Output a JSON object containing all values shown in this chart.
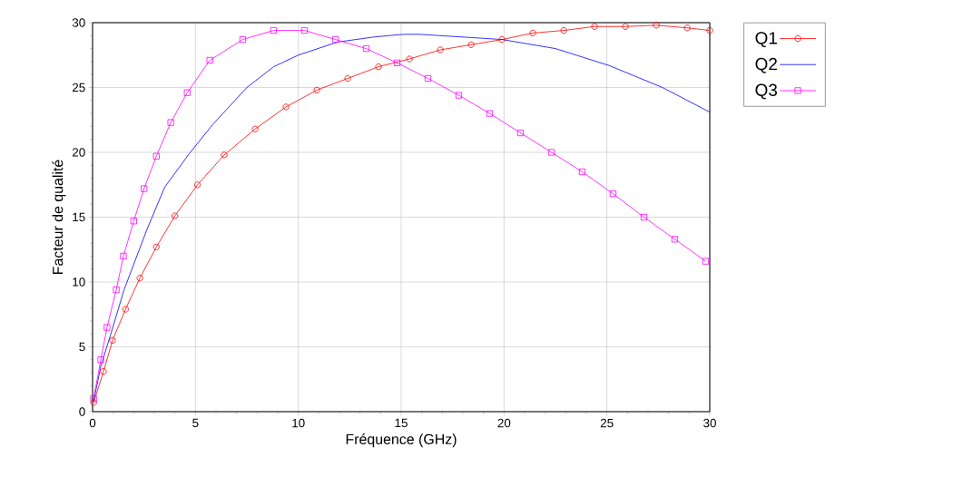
{
  "chart_data": {
    "type": "line",
    "xlabel": "Fréquence (GHz)",
    "ylabel": "Facteur de qualité",
    "xlim": [
      0,
      30
    ],
    "ylim": [
      0,
      30
    ],
    "xticks": [
      0,
      5,
      10,
      15,
      20,
      25,
      30
    ],
    "yticks": [
      0,
      5,
      10,
      15,
      20,
      25,
      30
    ],
    "grid": true,
    "legend": "right",
    "series": [
      {
        "name": "Q1",
        "color": "#ff0000",
        "marker": "circle",
        "x": [
          0.05,
          0.53,
          0.97,
          1.6,
          2.3,
          3.1,
          4.0,
          5.1,
          6.4,
          7.9,
          9.4,
          10.9,
          12.4,
          13.9,
          15.4,
          16.9,
          18.4,
          19.9,
          21.4,
          22.9,
          24.4,
          25.9,
          27.4,
          28.9,
          30
        ],
        "values": [
          0.7,
          3.1,
          5.5,
          7.9,
          10.3,
          12.7,
          15.1,
          17.5,
          19.8,
          21.8,
          23.5,
          24.8,
          25.7,
          26.6,
          27.2,
          27.9,
          28.3,
          28.7,
          29.2,
          29.4,
          29.7,
          29.7,
          29.8,
          29.6,
          29.4
        ]
      },
      {
        "name": "Q2",
        "color": "#0000ff",
        "marker": "none",
        "x": [
          0.05,
          0.4,
          0.87,
          1.53,
          2.63,
          3.5,
          4.7,
          5.87,
          7.5,
          8.8,
          10.0,
          11.9,
          13.7,
          15.1,
          15.9,
          19.9,
          22.5,
          25.1,
          27.7,
          30
        ],
        "values": [
          0.8,
          3.5,
          5.9,
          9.4,
          14.0,
          17.3,
          19.9,
          22.2,
          25.0,
          26.6,
          27.5,
          28.5,
          28.9,
          29.1,
          29.1,
          28.7,
          28.0,
          26.7,
          25.0,
          23.1
        ]
      },
      {
        "name": "Q3",
        "color": "#ff00ff",
        "marker": "square",
        "x": [
          0.05,
          0.4,
          0.7,
          1.15,
          1.5,
          2.0,
          2.5,
          3.1,
          3.8,
          4.6,
          5.7,
          7.3,
          8.8,
          10.3,
          11.8,
          13.3,
          14.8,
          16.3,
          17.8,
          19.3,
          20.8,
          22.3,
          23.8,
          25.3,
          26.8,
          28.3,
          29.8
        ],
        "values": [
          1.0,
          4.0,
          6.5,
          9.4,
          12.0,
          14.7,
          17.2,
          19.7,
          22.3,
          24.6,
          27.1,
          28.7,
          29.4,
          29.4,
          28.7,
          28.0,
          26.9,
          25.7,
          24.4,
          23.0,
          21.5,
          20.0,
          18.5,
          16.8,
          15.0,
          13.3,
          11.6
        ]
      }
    ]
  }
}
